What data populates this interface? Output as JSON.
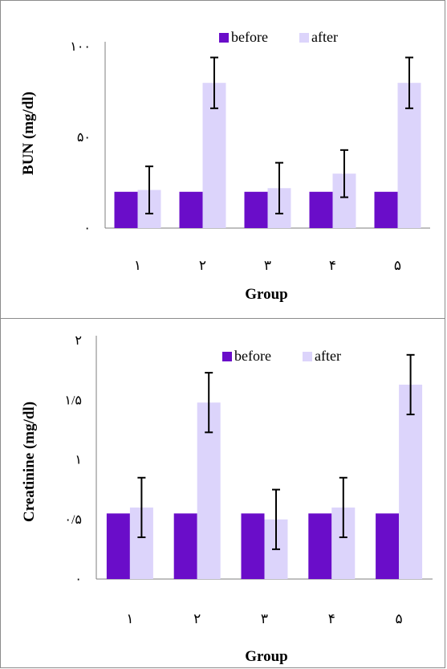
{
  "colors": {
    "before": "#6a0dc9",
    "after": "#dcd4fb",
    "axis": "#7f7f7f",
    "error": "#000000",
    "border": "#8c8c8c"
  },
  "chart_data": [
    {
      "type": "bar",
      "xlabel": "Group",
      "ylabel": "BUN (mg/dl)",
      "categories": [
        "١",
        "٢",
        "٣",
        "۴",
        "۵"
      ],
      "ylim": [
        0,
        100
      ],
      "yticks": [
        {
          "value": 0,
          "label": "٠"
        },
        {
          "value": 50,
          "label": "۵٠"
        },
        {
          "value": 100,
          "label": "١٠٠"
        }
      ],
      "legend_position": "top-right",
      "series": [
        {
          "name": "before",
          "values": [
            20,
            20,
            20,
            20,
            20
          ]
        },
        {
          "name": "after",
          "values": [
            21,
            80,
            22,
            30,
            80
          ],
          "error": [
            13,
            14,
            14,
            13,
            14
          ]
        }
      ]
    },
    {
      "type": "bar",
      "xlabel": "Group",
      "ylabel": "Creatinine (mg/dl)",
      "categories": [
        "١",
        "٢",
        "٣",
        "۴",
        "۵"
      ],
      "ylim": [
        0,
        2
      ],
      "yticks": [
        {
          "value": 0,
          "label": "٠"
        },
        {
          "value": 0.5,
          "label": "٠/۵"
        },
        {
          "value": 1,
          "label": "١"
        },
        {
          "value": 1.5,
          "label": "١/۵"
        },
        {
          "value": 2,
          "label": "٢"
        }
      ],
      "legend_position": "top-right",
      "series": [
        {
          "name": "before",
          "values": [
            0.55,
            0.55,
            0.55,
            0.55,
            0.55
          ]
        },
        {
          "name": "after",
          "values": [
            0.6,
            1.48,
            0.5,
            0.6,
            1.63
          ],
          "error": [
            0.25,
            0.25,
            0.25,
            0.25,
            0.25
          ]
        }
      ]
    }
  ]
}
